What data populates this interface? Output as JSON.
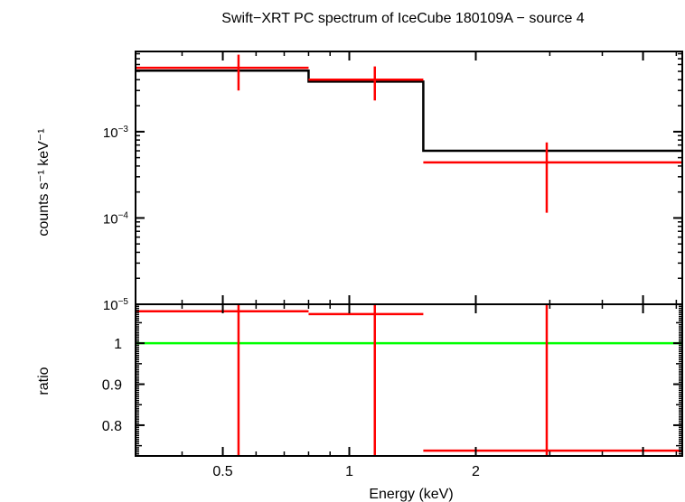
{
  "chart_data": {
    "type": "line",
    "title": "Swift−XRT PC spectrum of IceCube 180109A − source 4",
    "xlabel": "Energy (keV)",
    "x_scale": "log",
    "xlim": [
      0.31,
      6.2
    ],
    "x_ticks": [
      {
        "value": 0.5,
        "label": "0.5"
      },
      {
        "value": 1,
        "label": "1"
      },
      {
        "value": 2,
        "label": "2"
      }
    ],
    "colors": {
      "data": "#ff0000",
      "model": "#000000",
      "unity": "#00ff00"
    },
    "top_panel": {
      "ylabel": "counts s⁻¹ keV⁻¹",
      "y_scale": "log",
      "ylim": [
        1e-05,
        0.0085
      ],
      "y_ticks": [
        {
          "value": 0.001,
          "base": "10",
          "exp": "−3"
        },
        {
          "value": 0.0001,
          "base": "10",
          "exp": "−4"
        },
        {
          "value": 1e-05,
          "base": "10",
          "exp": "−5"
        }
      ],
      "data": [
        {
          "x_lo": 0.31,
          "x_hi": 0.8,
          "x": 0.545,
          "y": 0.0055,
          "y_err_lo": 0.003,
          "y_err_hi": 0.0078
        },
        {
          "x_lo": 0.8,
          "x_hi": 1.5,
          "x": 1.15,
          "y": 0.004,
          "y_err_lo": 0.0023,
          "y_err_hi": 0.0057
        },
        {
          "x_lo": 1.5,
          "x_hi": 6.2,
          "x": 2.95,
          "y": 0.00044,
          "y_err_lo": 0.000115,
          "y_err_hi": 0.00075
        }
      ],
      "model": [
        {
          "x_lo": 0.31,
          "x_hi": 0.8,
          "y": 0.0051
        },
        {
          "x_lo": 0.8,
          "x_hi": 1.5,
          "y": 0.0038
        },
        {
          "x_lo": 1.5,
          "x_hi": 6.2,
          "y": 0.0006
        }
      ]
    },
    "bottom_panel": {
      "ylabel": "ratio",
      "y_scale": "linear",
      "ylim": [
        0.725,
        1.095
      ],
      "y_ticks": [
        {
          "value": 0.8,
          "label": "0.8"
        },
        {
          "value": 0.9,
          "label": "0.9"
        },
        {
          "value": 1.0,
          "label": "1"
        }
      ],
      "unity_line": 1.0,
      "data": [
        {
          "x_lo": 0.31,
          "x_hi": 0.8,
          "x": 0.545,
          "y": 1.078
        },
        {
          "x_lo": 0.8,
          "x_hi": 1.5,
          "x": 1.15,
          "y": 1.071
        },
        {
          "x_lo": 1.5,
          "x_hi": 6.2,
          "x": 2.95,
          "y": 0.738
        }
      ]
    }
  }
}
